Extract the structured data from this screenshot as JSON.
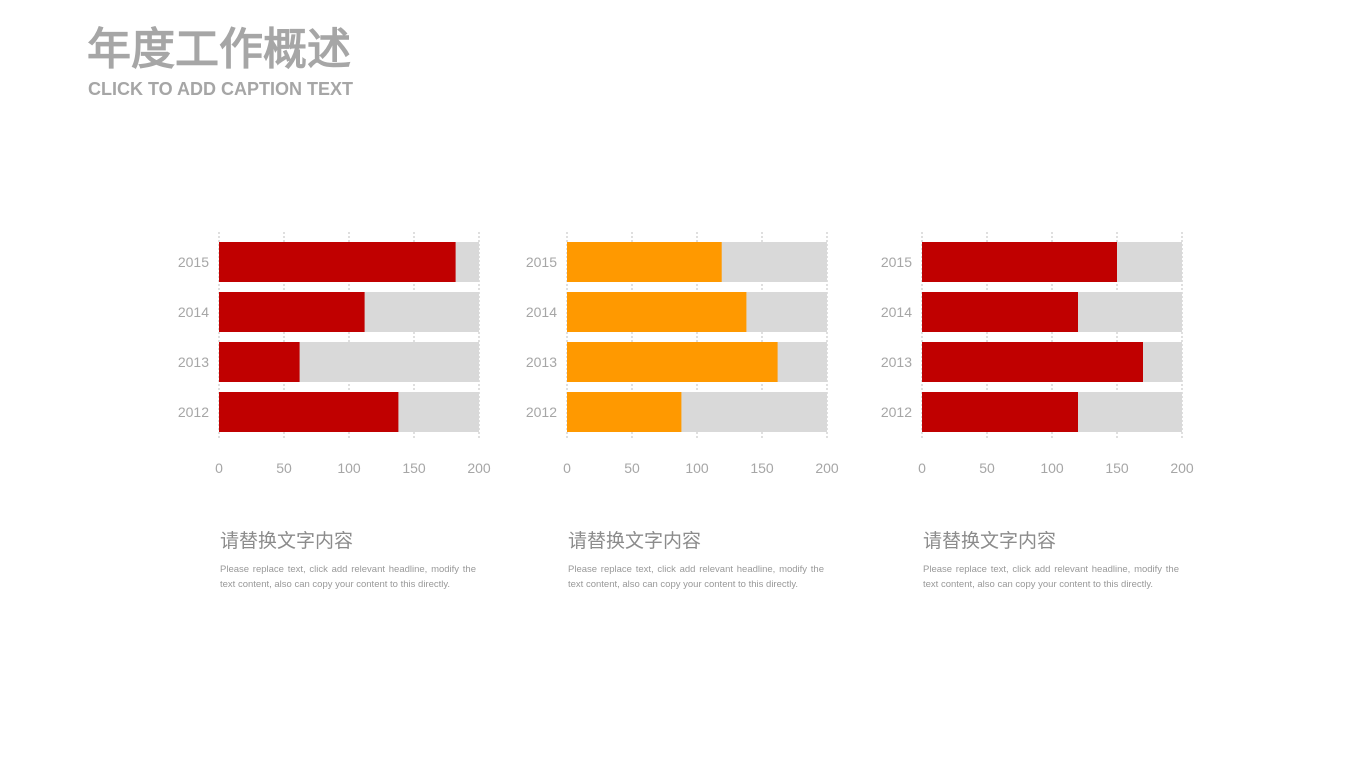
{
  "header": {
    "title": "年度工作概述",
    "subtitle": "CLICK TO ADD CAPTION TEXT"
  },
  "colors": {
    "red": "#c00000",
    "orange": "#ff9900",
    "track": "#d9d9d9",
    "axis_text": "#a6a6a6"
  },
  "chart_data": [
    {
      "type": "bar",
      "orientation": "horizontal",
      "stacked": true,
      "categories": [
        "2012",
        "2013",
        "2014",
        "2015"
      ],
      "values": [
        138,
        62,
        112,
        182
      ],
      "xlim": [
        0,
        200
      ],
      "xticks": [
        "0",
        "50",
        "100",
        "150",
        "200"
      ],
      "grid": true,
      "color": "#c00000",
      "track_color": "#d9d9d9"
    },
    {
      "type": "bar",
      "orientation": "horizontal",
      "stacked": true,
      "categories": [
        "2012",
        "2013",
        "2014",
        "2015"
      ],
      "values": [
        88,
        162,
        138,
        119
      ],
      "xlim": [
        0,
        200
      ],
      "xticks": [
        "0",
        "50",
        "100",
        "150",
        "200"
      ],
      "grid": true,
      "color": "#ff9900",
      "track_color": "#d9d9d9"
    },
    {
      "type": "bar",
      "orientation": "horizontal",
      "stacked": true,
      "categories": [
        "2012",
        "2013",
        "2014",
        "2015"
      ],
      "values": [
        120,
        170,
        120,
        150
      ],
      "xlim": [
        0,
        200
      ],
      "xticks": [
        "0",
        "50",
        "100",
        "150",
        "200"
      ],
      "grid": true,
      "color": "#c00000",
      "track_color": "#d9d9d9"
    }
  ],
  "descriptions": [
    {
      "heading": "请替换文字内容",
      "body": "Please replace text, click add relevant headline, modify the text content, also can copy your content to this directly."
    },
    {
      "heading": "请替换文字内容",
      "body": "Please replace text, click add relevant headline, modify the text content, also can copy your content to this directly."
    },
    {
      "heading": "请替换文字内容",
      "body": "Please replace text, click add relevant headline, modify the text content, also can copy your content to this directly."
    }
  ]
}
